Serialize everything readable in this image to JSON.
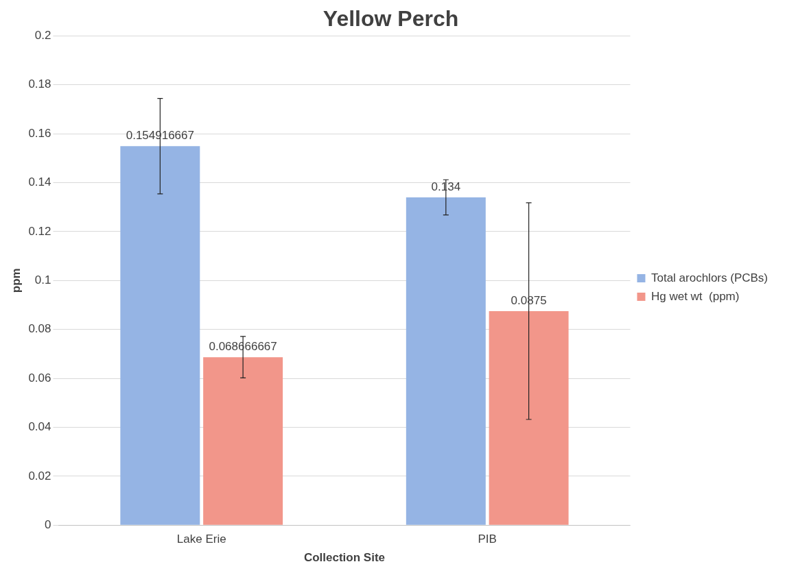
{
  "chart_data": {
    "type": "bar",
    "title": "Yellow Perch",
    "xlabel": "Collection Site",
    "ylabel": "ppm",
    "categories": [
      "Lake Erie",
      "PIB"
    ],
    "series": [
      {
        "name": "Total arochlors (PCBs)",
        "color": "#95b4e4",
        "values": [
          0.154916667,
          0.134
        ],
        "errors": [
          0.0195,
          0.0072
        ]
      },
      {
        "name": "Hg wet wt  (ppm)",
        "color": "#f2968a",
        "values": [
          0.068666667,
          0.0875
        ],
        "errors": [
          0.0085,
          0.0443
        ]
      }
    ],
    "ylim": [
      0,
      0.2
    ],
    "yticks": [
      0,
      0.02,
      0.04,
      0.06,
      0.08,
      0.1,
      0.12,
      0.14,
      0.16,
      0.18,
      0.2
    ],
    "grid": "y",
    "legend": "right",
    "data_labels": true
  }
}
